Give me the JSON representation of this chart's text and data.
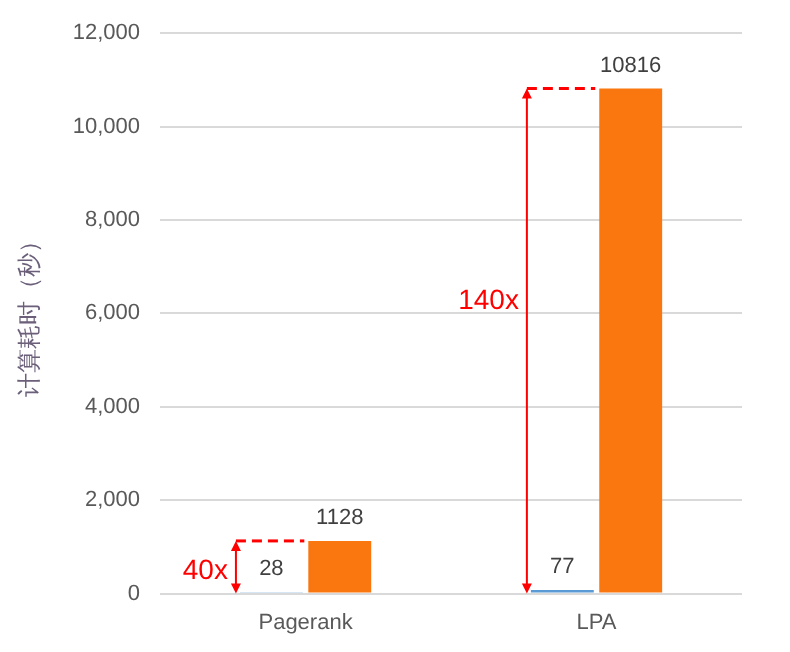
{
  "chart_data": {
    "type": "bar",
    "ylabel": "计算耗时（秒）",
    "categories": [
      "Pagerank",
      "LPA"
    ],
    "series": [
      {
        "color": "#5b9bd5",
        "values": [
          28,
          77
        ]
      },
      {
        "color": "#fa7710",
        "values": [
          1128,
          10816
        ]
      }
    ],
    "ylim": [
      0,
      12000
    ],
    "yticks": [
      {
        "value": 0,
        "label": "0"
      },
      {
        "value": 2000,
        "label": "2,000"
      },
      {
        "value": 4000,
        "label": "4,000"
      },
      {
        "value": 6000,
        "label": "6,000"
      },
      {
        "value": 8000,
        "label": "8,000"
      },
      {
        "value": 10000,
        "label": "10,000"
      },
      {
        "value": 12000,
        "label": "12,000"
      }
    ],
    "grid": "y",
    "legend": false,
    "data_labels": true,
    "annotations": [
      "40x",
      "140x"
    ]
  }
}
